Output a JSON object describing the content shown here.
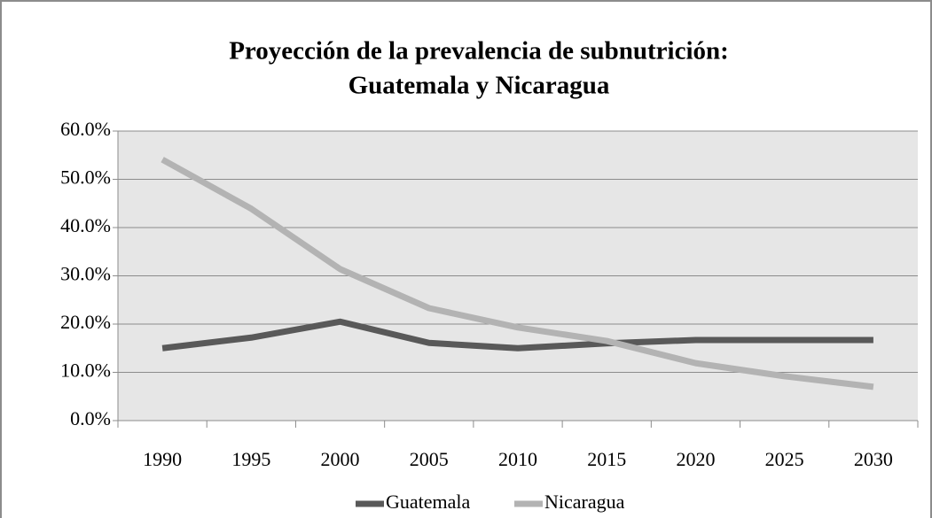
{
  "chart_data": {
    "type": "line",
    "title": [
      "Proyección de la prevalencia de subnutrición:",
      "Guatemala y Nicaragua"
    ],
    "categories": [
      "1990",
      "1995",
      "2000",
      "2005",
      "2010",
      "2015",
      "2020",
      "2025",
      "2030"
    ],
    "series": [
      {
        "name": "Guatemala",
        "color": "#595959",
        "values": [
          15.0,
          17.2,
          20.5,
          16.1,
          15.0,
          16.0,
          16.7,
          16.7,
          16.7
        ]
      },
      {
        "name": "Nicaragua",
        "color": "#b3b3b3",
        "values": [
          54.1,
          43.9,
          31.4,
          23.3,
          19.3,
          16.5,
          11.9,
          9.2,
          7.0
        ]
      }
    ],
    "ylim": [
      0,
      60
    ],
    "yticks": [
      {
        "value": 0,
        "label": "0.0%"
      },
      {
        "value": 10,
        "label": "10.0%"
      },
      {
        "value": 20,
        "label": "20.0%"
      },
      {
        "value": 30,
        "label": "30.0%"
      },
      {
        "value": 40,
        "label": "40.0%"
      },
      {
        "value": 50,
        "label": "50.0%"
      },
      {
        "value": 60,
        "label": "60.0%"
      }
    ],
    "grid": true,
    "legend": "bottom"
  }
}
